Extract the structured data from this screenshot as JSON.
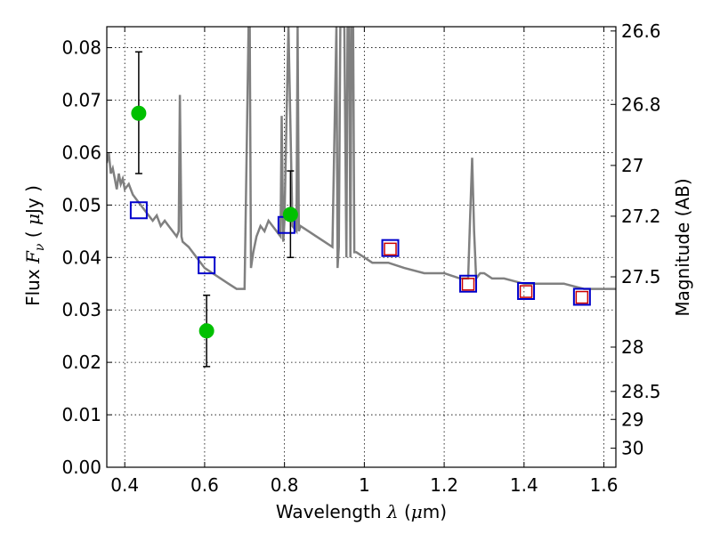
{
  "chart_data": {
    "type": "scatter",
    "xlabel": "Wavelength  λ (μm)",
    "xlabel_parts": [
      "Wavelength  ",
      "λ",
      " (",
      "μ",
      "m)"
    ],
    "ylabel": "Flux  Fν  ( μJy )",
    "ylabel_parts": [
      "Flux  ",
      "F",
      "ν",
      "  ( ",
      "μ",
      "Jy )"
    ],
    "y2label": "Magnitude (AB)",
    "xlim": [
      0.355,
      1.63
    ],
    "ylim": [
      0.0,
      0.084
    ],
    "grid": true,
    "x_ticks": [
      {
        "value": 0.4,
        "label": "0.4"
      },
      {
        "value": 0.6,
        "label": "0.6"
      },
      {
        "value": 0.8,
        "label": "0.8"
      },
      {
        "value": 1.0,
        "label": "1"
      },
      {
        "value": 1.2,
        "label": "1.2"
      },
      {
        "value": 1.4,
        "label": "1.4"
      },
      {
        "value": 1.6,
        "label": "1.6"
      }
    ],
    "y_ticks": [
      {
        "value": 0.0,
        "label": "0.00"
      },
      {
        "value": 0.01,
        "label": "0.01"
      },
      {
        "value": 0.02,
        "label": "0.02"
      },
      {
        "value": 0.03,
        "label": "0.03"
      },
      {
        "value": 0.04,
        "label": "0.04"
      },
      {
        "value": 0.05,
        "label": "0.05"
      },
      {
        "value": 0.06,
        "label": "0.06"
      },
      {
        "value": 0.07,
        "label": "0.07"
      },
      {
        "value": 0.08,
        "label": "0.08"
      }
    ],
    "mag_ticks": [
      {
        "value": 26.6,
        "label": "26.6"
      },
      {
        "value": 26.8,
        "label": "26.8"
      },
      {
        "value": 27.0,
        "label": "27"
      },
      {
        "value": 27.2,
        "label": "27.2"
      },
      {
        "value": 27.5,
        "label": "27.5"
      },
      {
        "value": 28.0,
        "label": "28"
      },
      {
        "value": 28.5,
        "label": "28.5"
      },
      {
        "value": 29.0,
        "label": "29"
      },
      {
        "value": 30.0,
        "label": "30"
      }
    ],
    "series": [
      {
        "name": "model-sed",
        "kind": "line",
        "color": "#808080",
        "x": [
          0.355,
          0.36,
          0.365,
          0.37,
          0.375,
          0.38,
          0.385,
          0.39,
          0.395,
          0.4,
          0.41,
          0.42,
          0.43,
          0.44,
          0.45,
          0.46,
          0.47,
          0.48,
          0.49,
          0.5,
          0.51,
          0.52,
          0.53,
          0.535,
          0.538,
          0.542,
          0.545,
          0.56,
          0.58,
          0.6,
          0.62,
          0.64,
          0.66,
          0.68,
          0.7,
          0.71,
          0.713,
          0.716,
          0.72,
          0.722,
          0.73,
          0.74,
          0.75,
          0.76,
          0.77,
          0.78,
          0.79,
          0.793,
          0.797,
          0.8,
          0.81,
          0.82,
          0.83,
          0.833,
          0.836,
          0.84,
          0.86,
          0.88,
          0.9,
          0.92,
          0.93,
          0.933,
          0.936,
          0.94,
          0.95,
          0.955,
          0.958,
          0.962,
          0.965,
          0.968,
          0.972,
          0.975,
          0.98,
          1.0,
          1.02,
          1.06,
          1.1,
          1.15,
          1.2,
          1.24,
          1.26,
          1.265,
          1.27,
          1.275,
          1.28,
          1.29,
          1.3,
          1.32,
          1.35,
          1.4,
          1.45,
          1.5,
          1.55,
          1.6,
          1.63
        ],
        "y": [
          0.058,
          0.06,
          0.056,
          0.057,
          0.055,
          0.053,
          0.056,
          0.054,
          0.055,
          0.053,
          0.054,
          0.052,
          0.051,
          0.05,
          0.049,
          0.048,
          0.047,
          0.048,
          0.046,
          0.047,
          0.046,
          0.045,
          0.044,
          0.045,
          0.071,
          0.044,
          0.043,
          0.042,
          0.04,
          0.038,
          0.037,
          0.036,
          0.035,
          0.034,
          0.034,
          0.084,
          0.084,
          0.038,
          0.04,
          0.041,
          0.044,
          0.046,
          0.045,
          0.047,
          0.046,
          0.045,
          0.044,
          0.067,
          0.043,
          0.047,
          0.084,
          0.046,
          0.045,
          0.084,
          0.045,
          0.046,
          0.045,
          0.044,
          0.043,
          0.042,
          0.084,
          0.038,
          0.042,
          0.084,
          0.084,
          0.04,
          0.084,
          0.084,
          0.04,
          0.084,
          0.084,
          0.041,
          0.041,
          0.04,
          0.039,
          0.039,
          0.038,
          0.037,
          0.037,
          0.036,
          0.036,
          0.048,
          0.059,
          0.045,
          0.036,
          0.037,
          0.037,
          0.036,
          0.036,
          0.035,
          0.035,
          0.035,
          0.034,
          0.034,
          0.034
        ]
      },
      {
        "name": "model-photometry-blue",
        "kind": "square-open",
        "color": "#0000cc",
        "x": [
          0.435,
          0.605,
          0.805,
          1.065,
          1.26,
          1.405,
          1.545
        ],
        "y": [
          0.049,
          0.0385,
          0.0462,
          0.0418,
          0.035,
          0.0336,
          0.0325
        ]
      },
      {
        "name": "observed-photometry-red",
        "kind": "square-small",
        "color": "#cc0000",
        "x": [
          1.065,
          1.26,
          1.405,
          1.545
        ],
        "y": [
          0.0416,
          0.0349,
          0.0335,
          0.0324
        ]
      },
      {
        "name": "observed-photometry-green",
        "kind": "point-errorbar",
        "color": "#00c000",
        "x": [
          0.435,
          0.605,
          0.815
        ],
        "y": [
          0.0675,
          0.026,
          0.0482
        ],
        "yerr_low": [
          0.0115,
          0.0068,
          0.0082
        ],
        "yerr_high": [
          0.0117,
          0.0068,
          0.0083
        ]
      }
    ]
  }
}
